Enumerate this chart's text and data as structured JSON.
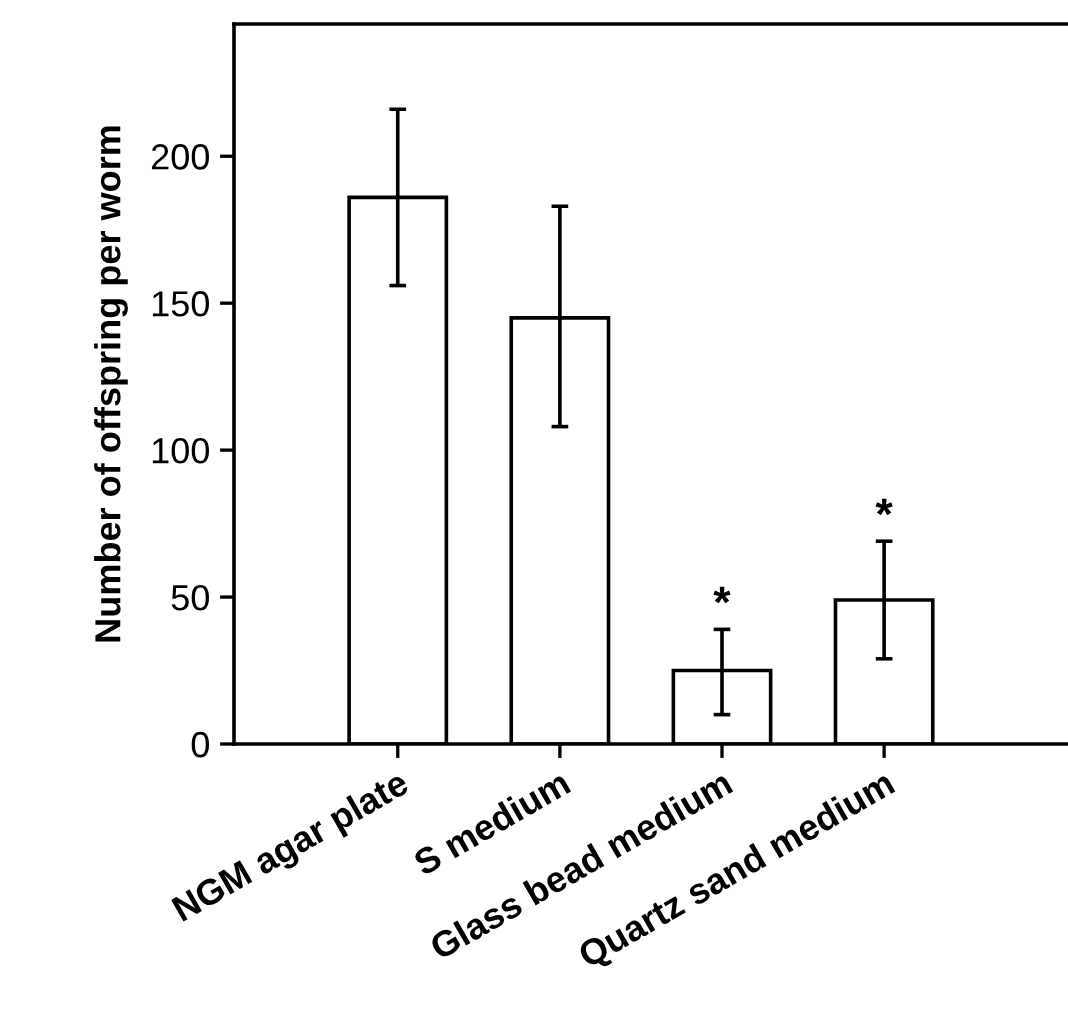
{
  "chart_data": {
    "type": "bar",
    "ylabel": "Number of offspring per worm",
    "categories": [
      "NGM agar plate",
      "S medium",
      "Glass bead medium",
      "Quartz sand medium"
    ],
    "values": [
      186,
      145,
      25,
      49
    ],
    "errors": [
      [
        156,
        216
      ],
      [
        108,
        183
      ],
      [
        10,
        39
      ],
      [
        29,
        69
      ]
    ],
    "color": "#ffffff",
    "ylim": [
      0,
      245
    ],
    "yticks": [
      0,
      50,
      100,
      150,
      200
    ],
    "grid": false,
    "annotations": [
      {
        "text": "*",
        "x": "Glass bead medium",
        "y": 39
      },
      {
        "text": "*",
        "x": "Quartz sand medium",
        "y": 69
      }
    ]
  }
}
